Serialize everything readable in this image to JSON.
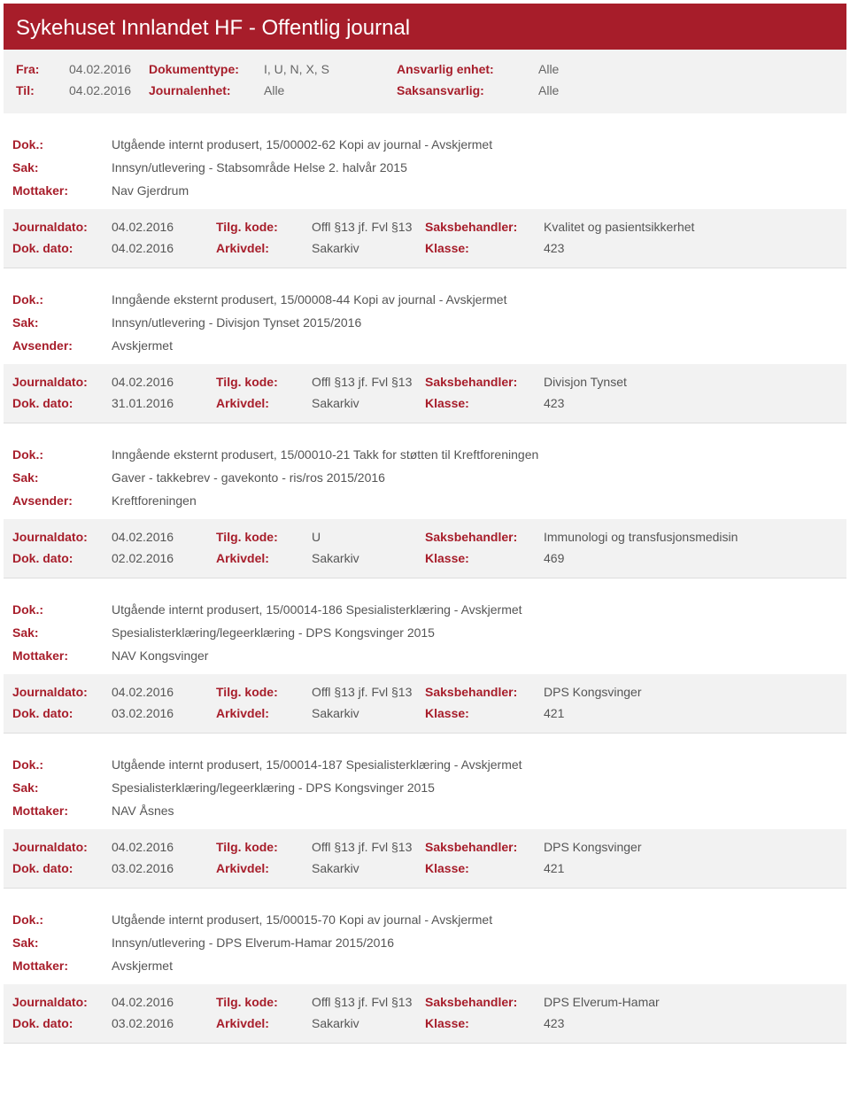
{
  "header": {
    "title": "Sykehuset Innlandet HF - Offentlig journal"
  },
  "filters": {
    "row1": {
      "k1": "Fra:",
      "v1": "04.02.2016",
      "k2": "Dokumenttype:",
      "v2": "I, U, N, X, S",
      "k3": "Ansvarlig enhet:",
      "v3": "Alle"
    },
    "row2": {
      "k1": "Til:",
      "v1": "04.02.2016",
      "k2": "Journalenhet:",
      "v2": "Alle",
      "k3": "Saksansvarlig:",
      "v3": "Alle"
    }
  },
  "labels": {
    "dok": "Dok.:",
    "sak": "Sak:",
    "mottaker": "Mottaker:",
    "avsender": "Avsender:",
    "journaldato": "Journaldato:",
    "dokdato": "Dok. dato:",
    "tilgkode": "Tilg. kode:",
    "arkivdel": "Arkivdel:",
    "saksbehandler": "Saksbehandler:",
    "klasse": "Klasse:"
  },
  "records": [
    {
      "dok": "Utgående internt produsert, 15/00002-62 Kopi av journal - Avskjermet",
      "sak": "Innsyn/utlevering - Stabsområde Helse 2. halvår 2015",
      "partyKey": "mottaker",
      "party": "Nav Gjerdrum",
      "journaldato": "04.02.2016",
      "tilgkode": "Offl §13 jf. Fvl §13",
      "saksbehandler": "Kvalitet og pasientsikkerhet",
      "dokdato": "04.02.2016",
      "arkivdel": "Sakarkiv",
      "klasse": "423"
    },
    {
      "dok": "Inngående eksternt produsert, 15/00008-44 Kopi av journal - Avskjermet",
      "sak": "Innsyn/utlevering - Divisjon Tynset 2015/2016",
      "partyKey": "avsender",
      "party": "Avskjermet",
      "journaldato": "04.02.2016",
      "tilgkode": "Offl §13 jf. Fvl §13",
      "saksbehandler": "Divisjon Tynset",
      "dokdato": "31.01.2016",
      "arkivdel": "Sakarkiv",
      "klasse": "423"
    },
    {
      "dok": "Inngående eksternt produsert, 15/00010-21 Takk for støtten til Kreftforeningen",
      "sak": "Gaver - takkebrev - gavekonto - ris/ros 2015/2016",
      "partyKey": "avsender",
      "party": "Kreftforeningen",
      "journaldato": "04.02.2016",
      "tilgkode": "U",
      "saksbehandler": "Immunologi og transfusjonsmedisin",
      "dokdato": "02.02.2016",
      "arkivdel": "Sakarkiv",
      "klasse": "469"
    },
    {
      "dok": "Utgående internt produsert, 15/00014-186 Spesialisterklæring - Avskjermet",
      "sak": "Spesialisterklæring/legeerklæring - DPS Kongsvinger 2015",
      "partyKey": "mottaker",
      "party": "NAV Kongsvinger",
      "journaldato": "04.02.2016",
      "tilgkode": "Offl §13 jf. Fvl §13",
      "saksbehandler": "DPS Kongsvinger",
      "dokdato": "03.02.2016",
      "arkivdel": "Sakarkiv",
      "klasse": "421"
    },
    {
      "dok": "Utgående internt produsert, 15/00014-187 Spesialisterklæring - Avskjermet",
      "sak": "Spesialisterklæring/legeerklæring - DPS Kongsvinger 2015",
      "partyKey": "mottaker",
      "party": "NAV Åsnes",
      "journaldato": "04.02.2016",
      "tilgkode": "Offl §13 jf. Fvl §13",
      "saksbehandler": "DPS Kongsvinger",
      "dokdato": "03.02.2016",
      "arkivdel": "Sakarkiv",
      "klasse": "421"
    },
    {
      "dok": "Utgående internt produsert, 15/00015-70 Kopi av journal - Avskjermet",
      "sak": "Innsyn/utlevering - DPS Elverum-Hamar 2015/2016",
      "partyKey": "mottaker",
      "party": "Avskjermet",
      "journaldato": "04.02.2016",
      "tilgkode": "Offl §13 jf. Fvl §13",
      "saksbehandler": "DPS Elverum-Hamar",
      "dokdato": "03.02.2016",
      "arkivdel": "Sakarkiv",
      "klasse": "423"
    }
  ]
}
